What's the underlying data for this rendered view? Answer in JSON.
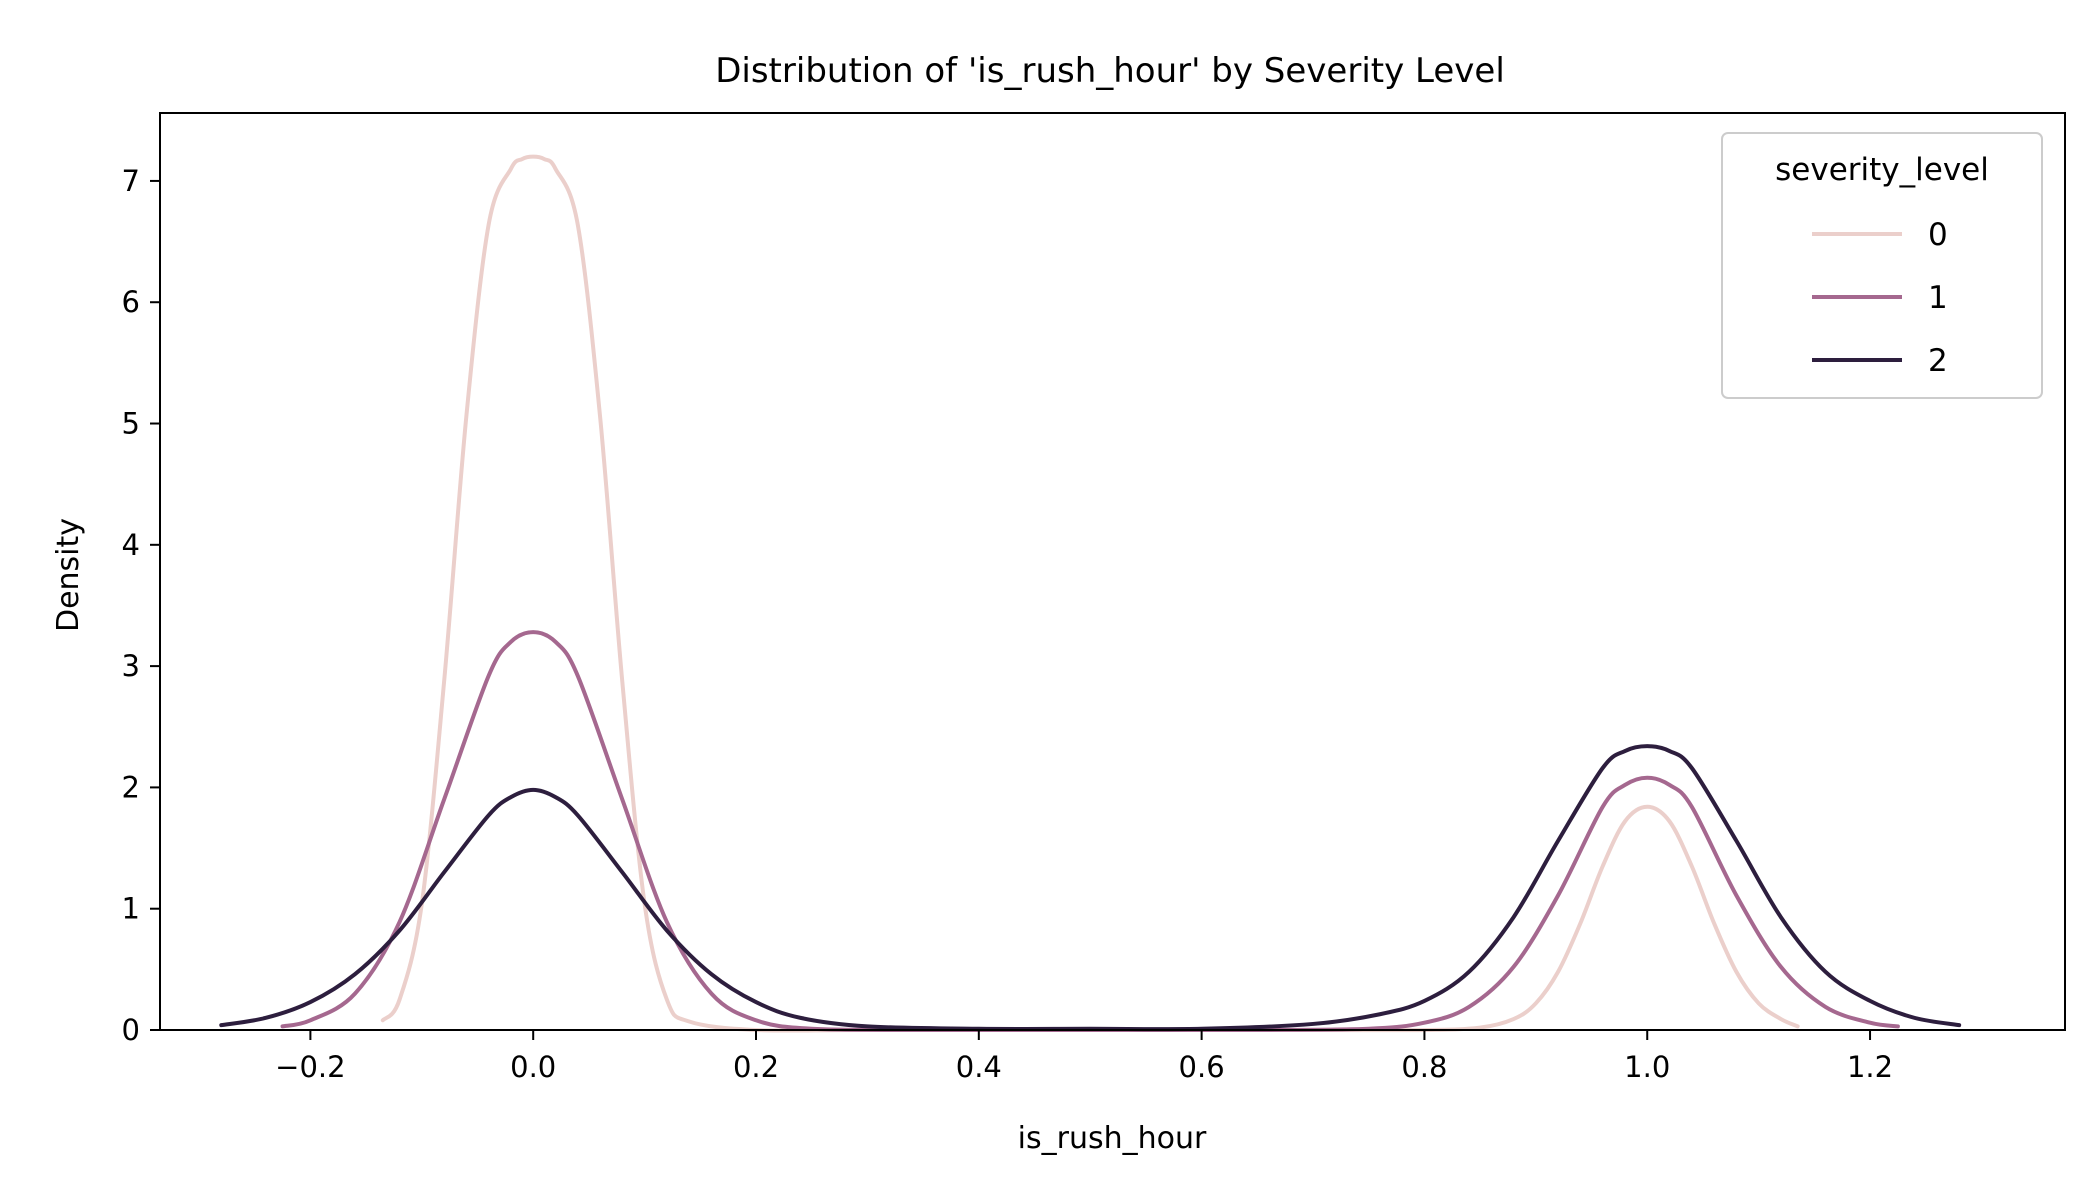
{
  "chart_data": {
    "type": "line",
    "title": "Distribution of 'is_rush_hour' by Severity Level",
    "xlabel": "is_rush_hour",
    "ylabel": "Density",
    "xlim": [
      -0.335,
      1.375
    ],
    "ylim": [
      0,
      7.56
    ],
    "x_ticks": [
      {
        "value": -0.2,
        "label": "−0.2"
      },
      {
        "value": 0.0,
        "label": "0.0"
      },
      {
        "value": 0.2,
        "label": "0.2"
      },
      {
        "value": 0.4,
        "label": "0.4"
      },
      {
        "value": 0.6,
        "label": "0.6"
      },
      {
        "value": 0.8,
        "label": "0.8"
      },
      {
        "value": 1.0,
        "label": "1.0"
      },
      {
        "value": 1.2,
        "label": "1.2"
      }
    ],
    "y_ticks": [
      {
        "value": 0,
        "label": "0"
      },
      {
        "value": 1,
        "label": "1"
      },
      {
        "value": 2,
        "label": "2"
      },
      {
        "value": 3,
        "label": "3"
      },
      {
        "value": 4,
        "label": "4"
      },
      {
        "value": 5,
        "label": "5"
      },
      {
        "value": 6,
        "label": "6"
      },
      {
        "value": 7,
        "label": "7"
      }
    ],
    "grid": false,
    "legend": {
      "title": "severity_level",
      "placement": "top-right"
    },
    "series": [
      {
        "name": "0",
        "color": "#ebcfcb",
        "x": [
          -0.135,
          -0.12,
          -0.1,
          -0.08,
          -0.06,
          -0.04,
          -0.02,
          -0.01,
          0.0,
          0.01,
          0.02,
          0.04,
          0.06,
          0.08,
          0.1,
          0.12,
          0.14,
          0.2,
          0.3,
          0.5,
          0.7,
          0.8,
          0.85,
          0.88,
          0.9,
          0.92,
          0.94,
          0.96,
          0.98,
          1.0,
          1.02,
          1.04,
          1.06,
          1.08,
          1.1,
          1.12,
          1.135
        ],
        "values": [
          0.08,
          0.25,
          1.04,
          2.87,
          5.06,
          6.64,
          7.1,
          7.18,
          7.2,
          7.18,
          7.1,
          6.64,
          5.06,
          2.87,
          1.04,
          0.25,
          0.07,
          0.0,
          0.0,
          0.0,
          0.0,
          0.0,
          0.02,
          0.09,
          0.22,
          0.48,
          0.88,
          1.35,
          1.72,
          1.84,
          1.72,
          1.35,
          0.88,
          0.48,
          0.22,
          0.09,
          0.03
        ]
      },
      {
        "name": "1",
        "color": "#a5688f",
        "x": [
          -0.225,
          -0.2,
          -0.16,
          -0.12,
          -0.08,
          -0.04,
          -0.02,
          0.0,
          0.02,
          0.04,
          0.08,
          0.12,
          0.16,
          0.2,
          0.25,
          0.35,
          0.5,
          0.65,
          0.75,
          0.8,
          0.84,
          0.88,
          0.92,
          0.96,
          0.98,
          1.0,
          1.02,
          1.04,
          1.08,
          1.12,
          1.16,
          1.2,
          1.225
        ],
        "values": [
          0.03,
          0.08,
          0.3,
          0.89,
          1.9,
          2.92,
          3.2,
          3.28,
          3.2,
          2.92,
          1.9,
          0.89,
          0.3,
          0.08,
          0.01,
          0.0,
          0.0,
          0.0,
          0.01,
          0.06,
          0.19,
          0.52,
          1.11,
          1.84,
          2.02,
          2.08,
          2.02,
          1.84,
          1.11,
          0.52,
          0.19,
          0.06,
          0.03
        ]
      },
      {
        "name": "2",
        "color": "#2d1e3e",
        "x": [
          -0.28,
          -0.24,
          -0.2,
          -0.16,
          -0.12,
          -0.08,
          -0.04,
          -0.02,
          0.0,
          0.02,
          0.04,
          0.08,
          0.12,
          0.16,
          0.2,
          0.24,
          0.3,
          0.4,
          0.5,
          0.6,
          0.7,
          0.76,
          0.8,
          0.84,
          0.88,
          0.92,
          0.96,
          0.98,
          1.0,
          1.02,
          1.04,
          1.08,
          1.12,
          1.16,
          1.2,
          1.24,
          1.28
        ],
        "values": [
          0.04,
          0.1,
          0.23,
          0.46,
          0.82,
          1.3,
          1.77,
          1.92,
          1.98,
          1.92,
          1.77,
          1.3,
          0.82,
          0.46,
          0.23,
          0.1,
          0.03,
          0.01,
          0.01,
          0.01,
          0.05,
          0.13,
          0.24,
          0.48,
          0.93,
          1.56,
          2.16,
          2.3,
          2.34,
          2.3,
          2.16,
          1.56,
          0.93,
          0.48,
          0.24,
          0.1,
          0.04
        ]
      }
    ]
  }
}
